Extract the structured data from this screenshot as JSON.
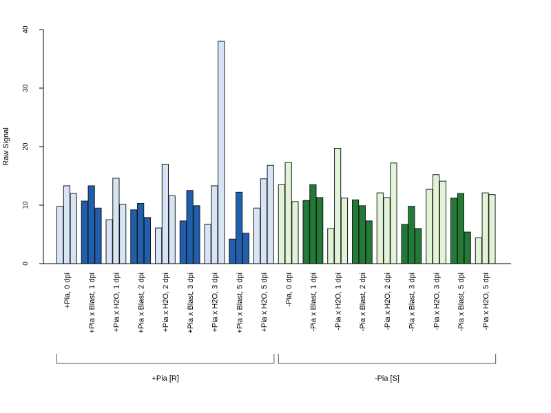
{
  "chart_data": {
    "type": "bar",
    "ylabel": "Raw Signal",
    "xlabel": "",
    "ylim": [
      0,
      40
    ],
    "yticks": [
      0,
      10,
      20,
      30,
      40
    ],
    "grid": false,
    "colors": {
      "light_blue": "#d6e4f5",
      "dark_blue": "#1f5fae",
      "light_green": "#e2f4d8",
      "dark_green": "#217a35"
    },
    "categories": [
      "+Pia, 0 dpi",
      "+Pia x Blast, 1 dpi",
      "+Pia x H2O, 1 dpi",
      "+Pia x Blast, 2 dpi",
      "+Pia x H2O, 2 dpi",
      "+Pia x Blast, 3 dpi",
      "+Pia x H2O, 3 dpi",
      "+Pia x Blast, 5 dpi",
      "+Pia x H2O, 5 dpi",
      "-Pia, 0 dpi",
      "-Pia x Blast, 1 dpi",
      "-Pia x H2O, 1 dpi",
      "-Pia x Blast, 2 dpi",
      "-Pia x H2O, 2 dpi",
      "-Pia x Blast, 3 dpi",
      "-Pia x H2O, 3 dpi",
      "-Pia x Blast, 5 dpi",
      "-Pia x H2O, 5 dpi"
    ],
    "category_colors": [
      "light_blue",
      "dark_blue",
      "light_blue",
      "dark_blue",
      "light_blue",
      "dark_blue",
      "light_blue",
      "dark_blue",
      "light_blue",
      "light_green",
      "dark_green",
      "light_green",
      "dark_green",
      "light_green",
      "dark_green",
      "light_green",
      "dark_green",
      "light_green"
    ],
    "replicates": [
      [
        9.8,
        13.3,
        12.0
      ],
      [
        10.7,
        13.3,
        9.5
      ],
      [
        7.5,
        14.6,
        10.1
      ],
      [
        9.2,
        10.3,
        7.9
      ],
      [
        6.1,
        17.0,
        11.6
      ],
      [
        7.3,
        12.5,
        9.9
      ],
      [
        6.7,
        13.3,
        38.0
      ],
      [
        4.2,
        12.2,
        5.2
      ],
      [
        9.5,
        14.5,
        16.8
      ],
      [
        13.5,
        17.3,
        10.6
      ],
      [
        10.8,
        13.5,
        11.3
      ],
      [
        6.0,
        19.7,
        11.2
      ],
      [
        10.9,
        9.9,
        7.3
      ],
      [
        12.1,
        11.3,
        17.2
      ],
      [
        6.7,
        9.8,
        6.0
      ],
      [
        12.7,
        15.2,
        14.1
      ],
      [
        11.2,
        12.0,
        5.4
      ],
      [
        4.4,
        12.1,
        11.8
      ]
    ],
    "groups": [
      {
        "label": "+Pia [R]",
        "from": 0,
        "to": 8
      },
      {
        "label": "-Pia [S]",
        "from": 9,
        "to": 17
      }
    ]
  }
}
